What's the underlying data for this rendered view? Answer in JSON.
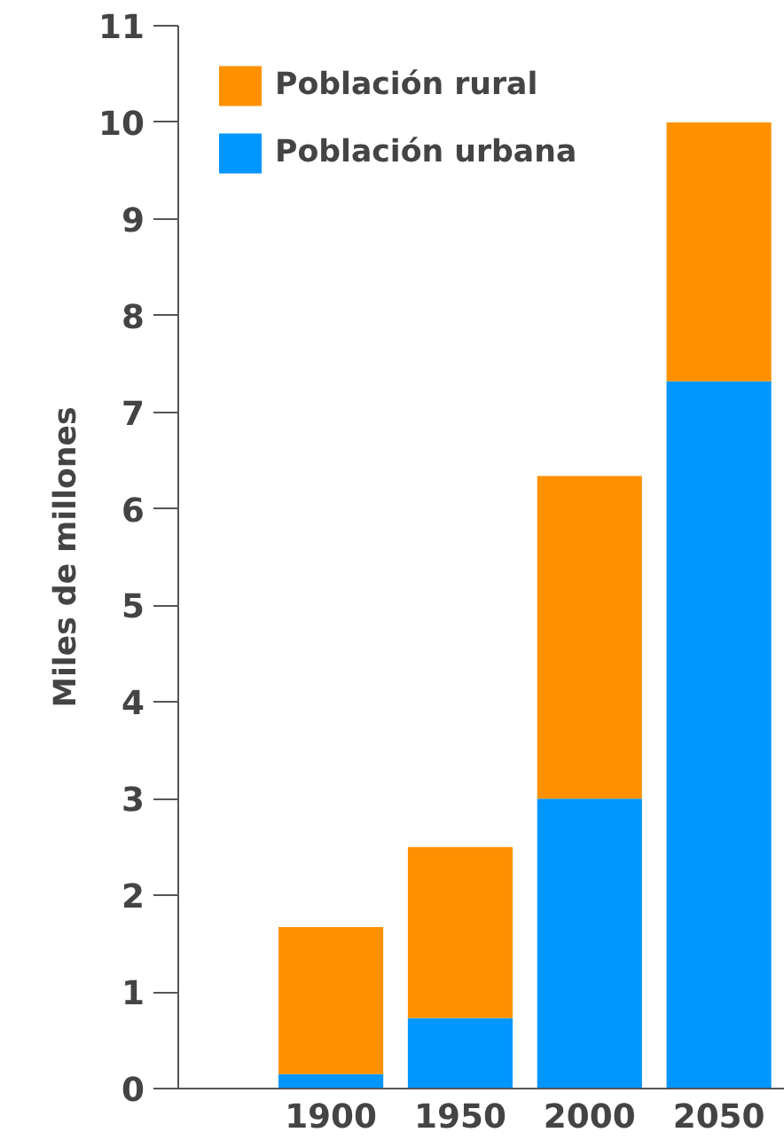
{
  "chart_data": {
    "type": "bar",
    "stacked": true,
    "ylabel": "Miles de millones",
    "categories": [
      "1900",
      "1950",
      "2000",
      "2050"
    ],
    "series": [
      {
        "name": "Población urbana",
        "color": "#0096ff",
        "values": [
          0.15,
          0.73,
          3.0,
          7.32
        ]
      },
      {
        "name": "Población rural",
        "color": "#ff9100",
        "values": [
          1.52,
          1.77,
          3.34,
          2.68
        ]
      }
    ],
    "ylim": [
      0,
      11
    ],
    "yticks": [
      0,
      1,
      2,
      3,
      4,
      5,
      6,
      7,
      8,
      9,
      10,
      11
    ],
    "grid": false,
    "legend": "top left"
  }
}
